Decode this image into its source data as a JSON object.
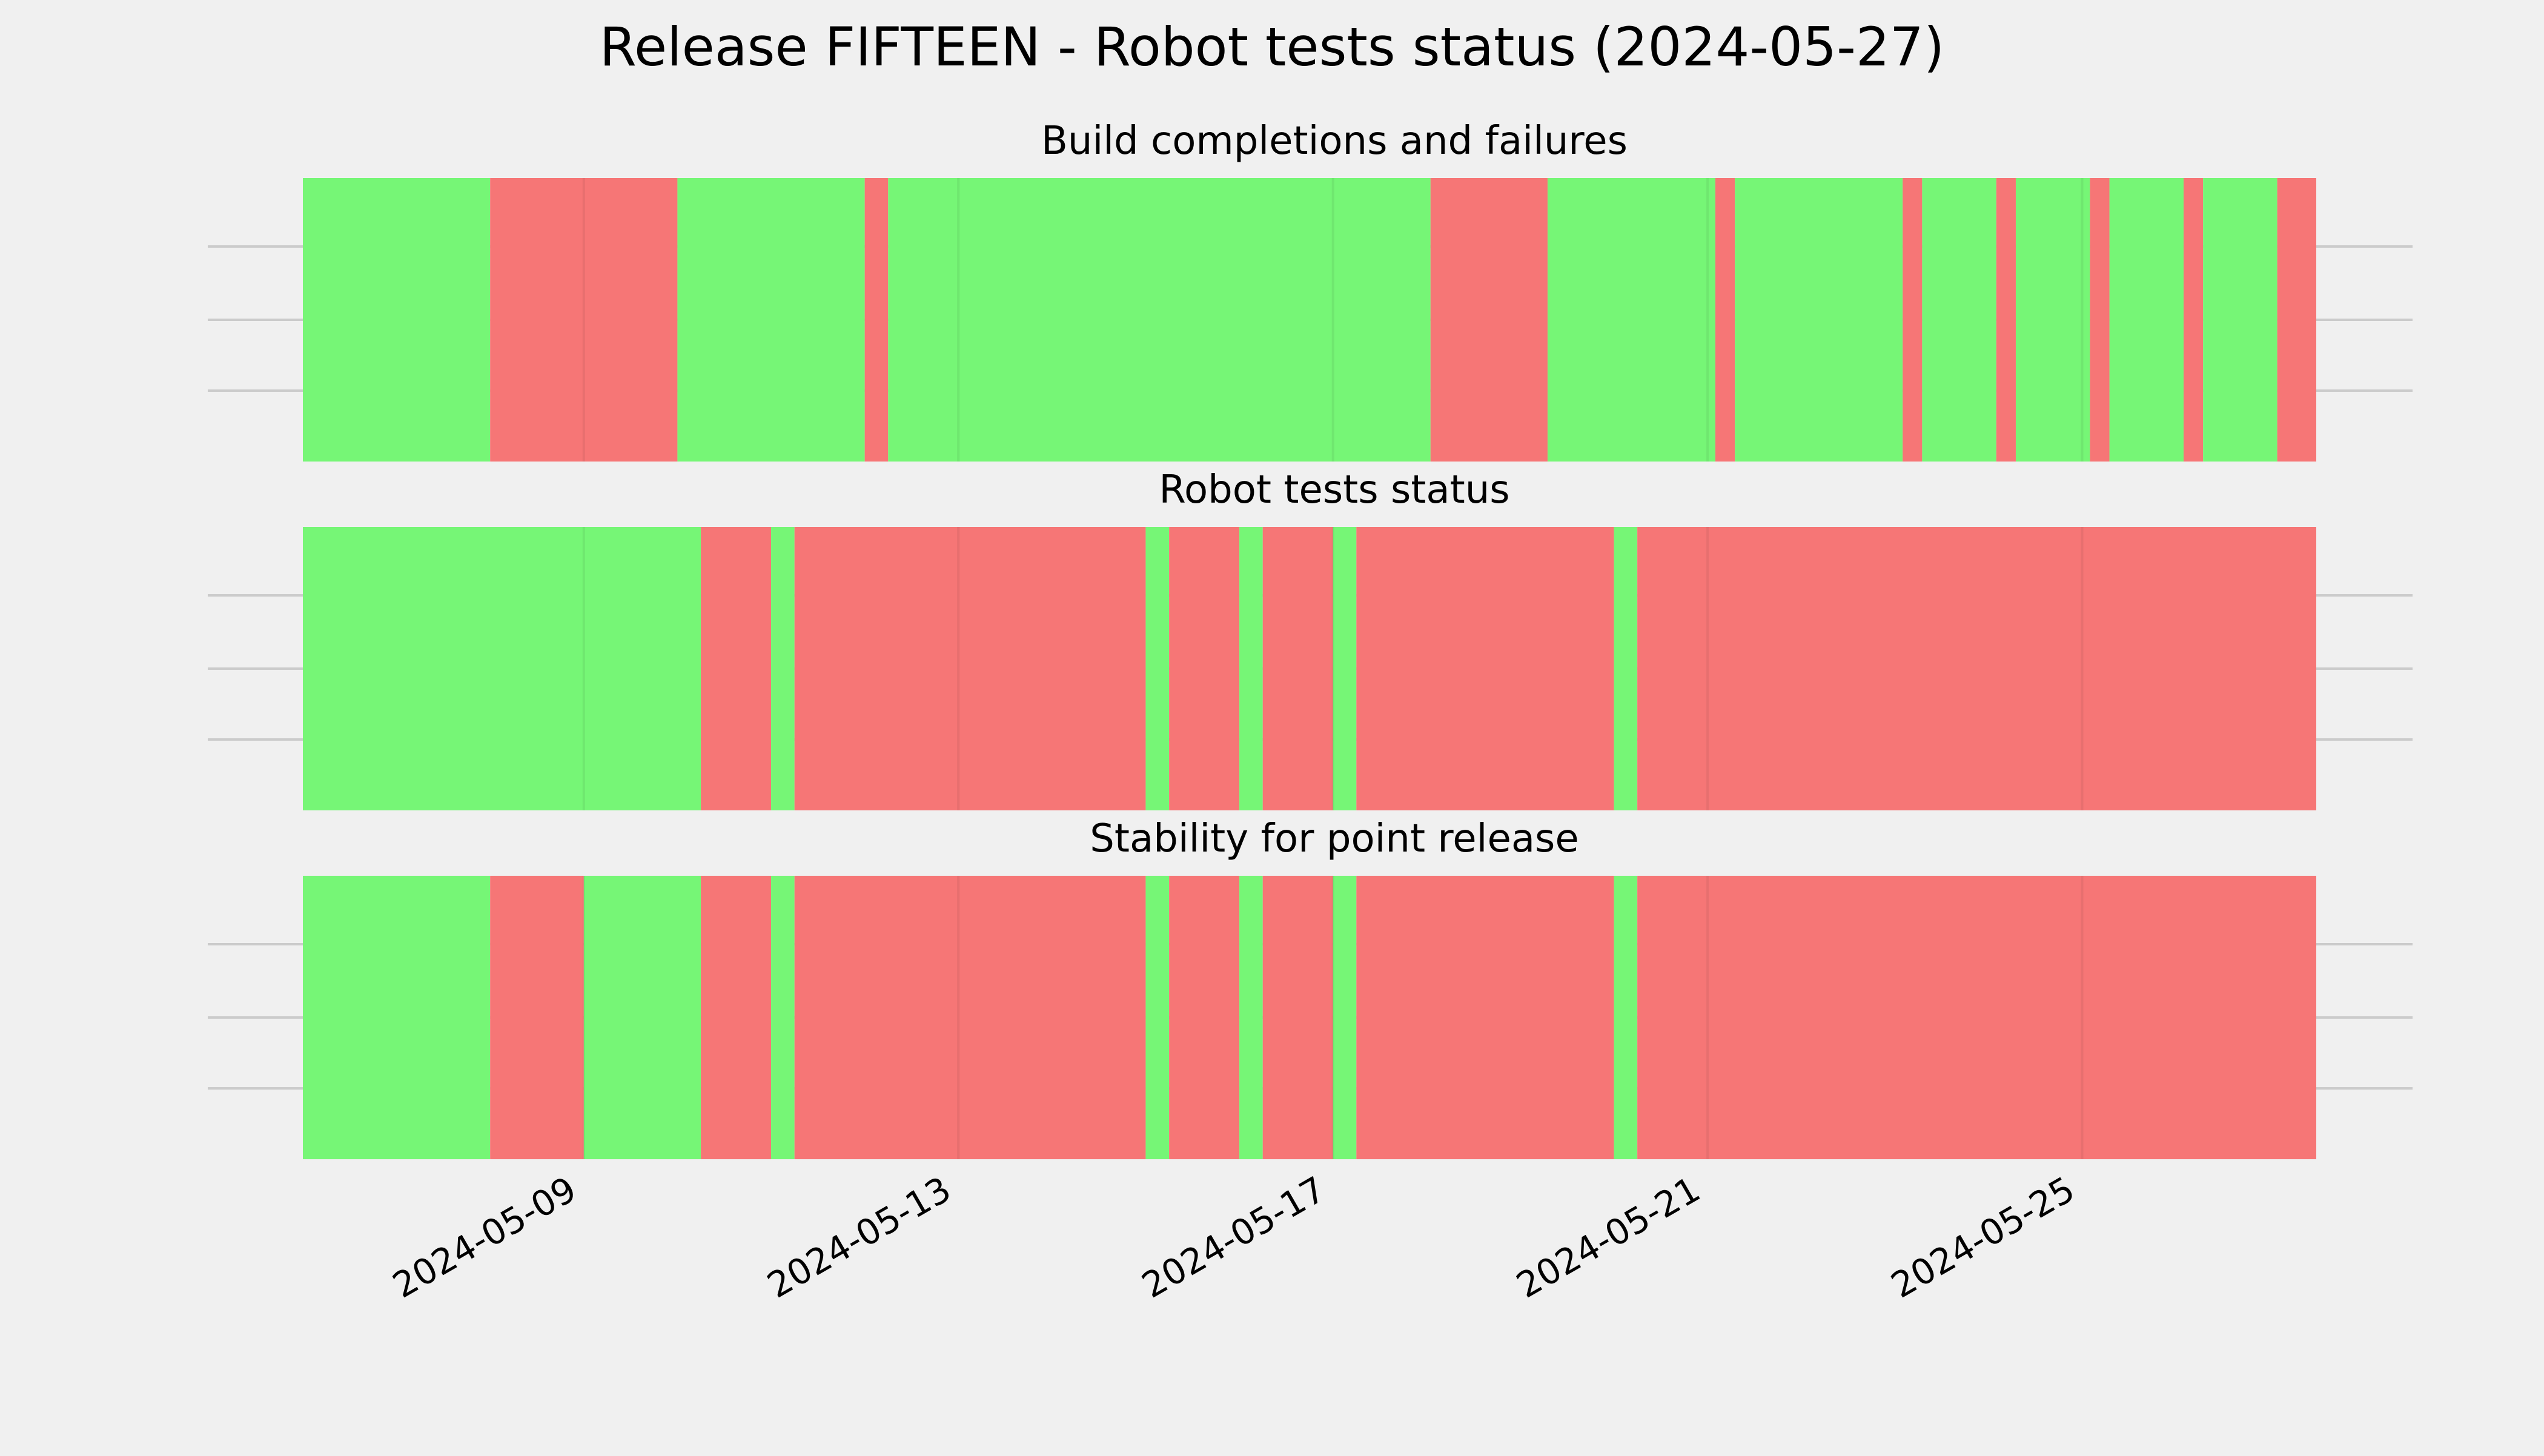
{
  "colors": {
    "background": "#f0f0f0",
    "pass": "#76f676",
    "fail": "#f67676",
    "grid": "#cbcbcb"
  },
  "chart_data": {
    "type": "timeline",
    "title": "Release FIFTEEN - Robot tests status (2024-05-27)",
    "x_axis": {
      "type": "date",
      "range": [
        "2024-05-06",
        "2024-05-27T12:00"
      ],
      "tick_labels": [
        "2024-05-09",
        "2024-05-13",
        "2024-05-17",
        "2024-05-21",
        "2024-05-25"
      ],
      "ticks": [
        "2024-05-09",
        "2024-05-13",
        "2024-05-17",
        "2024-05-21",
        "2024-05-25"
      ]
    },
    "grid": true,
    "panels": [
      {
        "title": "Build completions and failures",
        "segments": [
          {
            "start": "2024-05-06T00:00",
            "end": "2024-05-08T00:00",
            "status": "pass"
          },
          {
            "start": "2024-05-08T00:00",
            "end": "2024-05-10T00:00",
            "status": "fail"
          },
          {
            "start": "2024-05-10T00:00",
            "end": "2024-05-12T00:00",
            "status": "pass"
          },
          {
            "start": "2024-05-12T00:00",
            "end": "2024-05-12T06:00",
            "status": "fail"
          },
          {
            "start": "2024-05-12T06:00",
            "end": "2024-05-18T01:00",
            "status": "pass"
          },
          {
            "start": "2024-05-18T01:00",
            "end": "2024-05-19T07:00",
            "status": "fail"
          },
          {
            "start": "2024-05-19T07:00",
            "end": "2024-05-21T02:00",
            "status": "pass"
          },
          {
            "start": "2024-05-21T02:00",
            "end": "2024-05-21T07:00",
            "status": "fail"
          },
          {
            "start": "2024-05-21T07:00",
            "end": "2024-05-23T02:00",
            "status": "pass"
          },
          {
            "start": "2024-05-23T02:00",
            "end": "2024-05-23T07:00",
            "status": "fail"
          },
          {
            "start": "2024-05-23T07:00",
            "end": "2024-05-24T02:00",
            "status": "pass"
          },
          {
            "start": "2024-05-24T02:00",
            "end": "2024-05-24T07:00",
            "status": "fail"
          },
          {
            "start": "2024-05-24T07:00",
            "end": "2024-05-25T02:00",
            "status": "pass"
          },
          {
            "start": "2024-05-25T02:00",
            "end": "2024-05-25T07:00",
            "status": "fail"
          },
          {
            "start": "2024-05-25T07:00",
            "end": "2024-05-26T02:00",
            "status": "pass"
          },
          {
            "start": "2024-05-26T02:00",
            "end": "2024-05-26T07:00",
            "status": "fail"
          },
          {
            "start": "2024-05-26T07:00",
            "end": "2024-05-27T02:00",
            "status": "pass"
          },
          {
            "start": "2024-05-27T02:00",
            "end": "2024-05-27T12:00",
            "status": "fail"
          }
        ]
      },
      {
        "title": "Robot tests status",
        "segments": [
          {
            "start": "2024-05-06T00:00",
            "end": "2024-05-10T06:00",
            "status": "pass"
          },
          {
            "start": "2024-05-10T06:00",
            "end": "2024-05-11T00:00",
            "status": "fail"
          },
          {
            "start": "2024-05-11T00:00",
            "end": "2024-05-11T06:00",
            "status": "pass"
          },
          {
            "start": "2024-05-11T06:00",
            "end": "2024-05-15T00:00",
            "status": "fail"
          },
          {
            "start": "2024-05-15T00:00",
            "end": "2024-05-15T06:00",
            "status": "pass"
          },
          {
            "start": "2024-05-15T06:00",
            "end": "2024-05-16T00:00",
            "status": "fail"
          },
          {
            "start": "2024-05-16T00:00",
            "end": "2024-05-16T06:00",
            "status": "pass"
          },
          {
            "start": "2024-05-16T06:00",
            "end": "2024-05-17T00:00",
            "status": "fail"
          },
          {
            "start": "2024-05-17T00:00",
            "end": "2024-05-17T06:00",
            "status": "pass"
          },
          {
            "start": "2024-05-17T06:00",
            "end": "2024-05-20T00:00",
            "status": "fail"
          },
          {
            "start": "2024-05-20T00:00",
            "end": "2024-05-20T06:00",
            "status": "pass"
          },
          {
            "start": "2024-05-20T06:00",
            "end": "2024-05-27T12:00",
            "status": "fail"
          }
        ]
      },
      {
        "title": "Stability for point release",
        "segments": [
          {
            "start": "2024-05-06T00:00",
            "end": "2024-05-08T00:00",
            "status": "pass"
          },
          {
            "start": "2024-05-08T00:00",
            "end": "2024-05-09T00:00",
            "status": "fail"
          },
          {
            "start": "2024-05-09T00:00",
            "end": "2024-05-10T06:00",
            "status": "pass"
          },
          {
            "start": "2024-05-10T06:00",
            "end": "2024-05-11T00:00",
            "status": "fail"
          },
          {
            "start": "2024-05-11T00:00",
            "end": "2024-05-11T06:00",
            "status": "pass"
          },
          {
            "start": "2024-05-11T06:00",
            "end": "2024-05-15T00:00",
            "status": "fail"
          },
          {
            "start": "2024-05-15T00:00",
            "end": "2024-05-15T06:00",
            "status": "pass"
          },
          {
            "start": "2024-05-15T06:00",
            "end": "2024-05-16T00:00",
            "status": "fail"
          },
          {
            "start": "2024-05-16T00:00",
            "end": "2024-05-16T06:00",
            "status": "pass"
          },
          {
            "start": "2024-05-16T06:00",
            "end": "2024-05-17T00:00",
            "status": "fail"
          },
          {
            "start": "2024-05-17T00:00",
            "end": "2024-05-17T06:00",
            "status": "pass"
          },
          {
            "start": "2024-05-17T06:00",
            "end": "2024-05-20T00:00",
            "status": "fail"
          },
          {
            "start": "2024-05-20T00:00",
            "end": "2024-05-20T06:00",
            "status": "pass"
          },
          {
            "start": "2024-05-20T06:00",
            "end": "2024-05-27T12:00",
            "status": "fail"
          }
        ]
      }
    ]
  }
}
